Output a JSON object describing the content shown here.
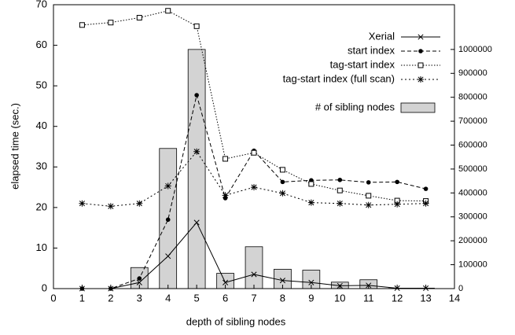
{
  "chart_data": {
    "type": "line",
    "xlabel": "depth of sibling nodes",
    "ylabel": "elapsed time (sec.)",
    "x": [
      1,
      2,
      3,
      4,
      5,
      6,
      7,
      8,
      9,
      10,
      11,
      12,
      13
    ],
    "xlim": [
      0,
      14
    ],
    "xticks": [
      0,
      1,
      2,
      3,
      4,
      5,
      6,
      7,
      8,
      9,
      10,
      11,
      12,
      13,
      14
    ],
    "ylim": [
      0,
      70
    ],
    "yticks": [
      0,
      10,
      20,
      30,
      40,
      50,
      60,
      70
    ],
    "y2lim": [
      0,
      1187000
    ],
    "y2ticks": [
      0,
      100000,
      200000,
      300000,
      400000,
      500000,
      600000,
      700000,
      800000,
      900000,
      1000000
    ],
    "legend": "upper right",
    "series": [
      {
        "name": "# of sibling nodes",
        "type": "bar",
        "axis": "y2",
        "color": "#d3d3d3",
        "values": [
          0,
          0,
          88000,
          586000,
          1000000,
          64000,
          175000,
          81000,
          77000,
          27000,
          37000,
          1000,
          2000
        ]
      },
      {
        "name": "Xerial",
        "type": "line",
        "color": "#000000",
        "marker": "x",
        "dash": "none",
        "values": [
          0,
          0,
          1.5,
          8,
          16.3,
          1.5,
          3.5,
          2,
          1.5,
          0.7,
          0.8,
          0.1,
          0.1
        ]
      },
      {
        "name": "start index",
        "type": "line",
        "color": "#000000",
        "marker": "circle",
        "dash": "5,3",
        "values": [
          0,
          0,
          2.5,
          17,
          47.7,
          22.3,
          34,
          26.3,
          26.7,
          26.8,
          26.2,
          26.3,
          24.6
        ]
      },
      {
        "name": "tag-start index",
        "type": "line",
        "color": "#000000",
        "marker": "square",
        "dash": "1.5,2",
        "values": [
          65,
          65.6,
          66.8,
          68.5,
          64.7,
          32,
          33.5,
          29.3,
          25.8,
          24.2,
          22.9,
          21.7,
          21.6
        ]
      },
      {
        "name": "tag-start index (full scan)",
        "type": "line",
        "color": "#000000",
        "marker": "star",
        "dash": "2,3",
        "values": [
          21,
          20.3,
          21,
          25.3,
          33.8,
          23,
          25,
          23.5,
          21.2,
          21,
          20.6,
          20.8,
          21
        ]
      }
    ]
  }
}
